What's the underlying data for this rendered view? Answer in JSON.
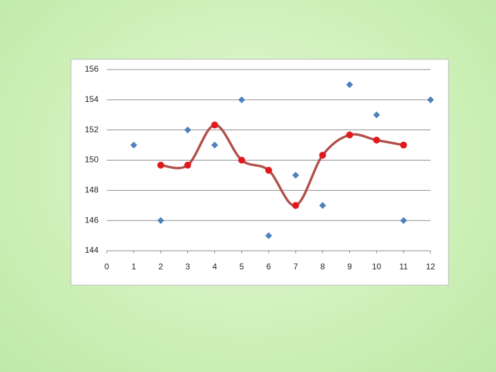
{
  "chart_data": {
    "type": "scatter",
    "xlim": [
      0,
      12
    ],
    "xticks": [
      0,
      1,
      2,
      3,
      4,
      5,
      6,
      7,
      8,
      9,
      10,
      11,
      12
    ],
    "ylim": [
      144,
      156
    ],
    "yticks": [
      144,
      146,
      148,
      150,
      152,
      154,
      156
    ],
    "grid": true,
    "series": [
      {
        "color": "#4f81bd",
        "marker": "diamond",
        "x": [
          1,
          2,
          3,
          4,
          5,
          6,
          7,
          8,
          9,
          10,
          11,
          12
        ],
        "values": [
          151,
          146,
          152,
          151,
          154,
          145,
          149,
          147,
          155,
          153,
          146,
          154
        ]
      },
      {
        "color": "#e0191e",
        "marker": "circle",
        "line": "smooth",
        "line_color": "#b0504b",
        "x": [
          2,
          3,
          4,
          5,
          6,
          7,
          8,
          9,
          10,
          11
        ],
        "values": [
          149.67,
          149.67,
          152.33,
          150,
          149.33,
          147,
          150.33,
          151.67,
          151.33,
          151
        ]
      }
    ]
  }
}
